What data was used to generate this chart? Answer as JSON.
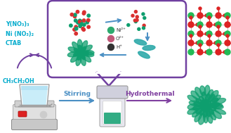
{
  "reagents_text": [
    "Y(NO₃)₃",
    "Ni (NO₃)₂",
    "CTAB"
  ],
  "solvent_text": "CH₃CH₂OH",
  "stirring_text": "Stirring",
  "hydrothermal_text": "Hydrothermal",
  "legend_texts": [
    "Ni²⁺",
    "O²⁺",
    "H⁺"
  ],
  "bubble_color": "#7040a0",
  "reagent_color": "#00aacc",
  "arrow_blue": "#4a8fc4",
  "arrow_purple": "#8040a0",
  "bg_color": "#ffffff",
  "green_color": "#0e9e6e",
  "red_color": "#d93030",
  "teal_color": "#2eaaaa",
  "legend_ni_color": "#2daa6e",
  "legend_o_color": "#c05878",
  "legend_h_color": "#333333",
  "hydrothermal_arrow_color": "#8040a0",
  "stirring_arrow_color": "#4a8fc4",
  "crystal_green": "#22bb55",
  "crystal_red": "#dd2222"
}
